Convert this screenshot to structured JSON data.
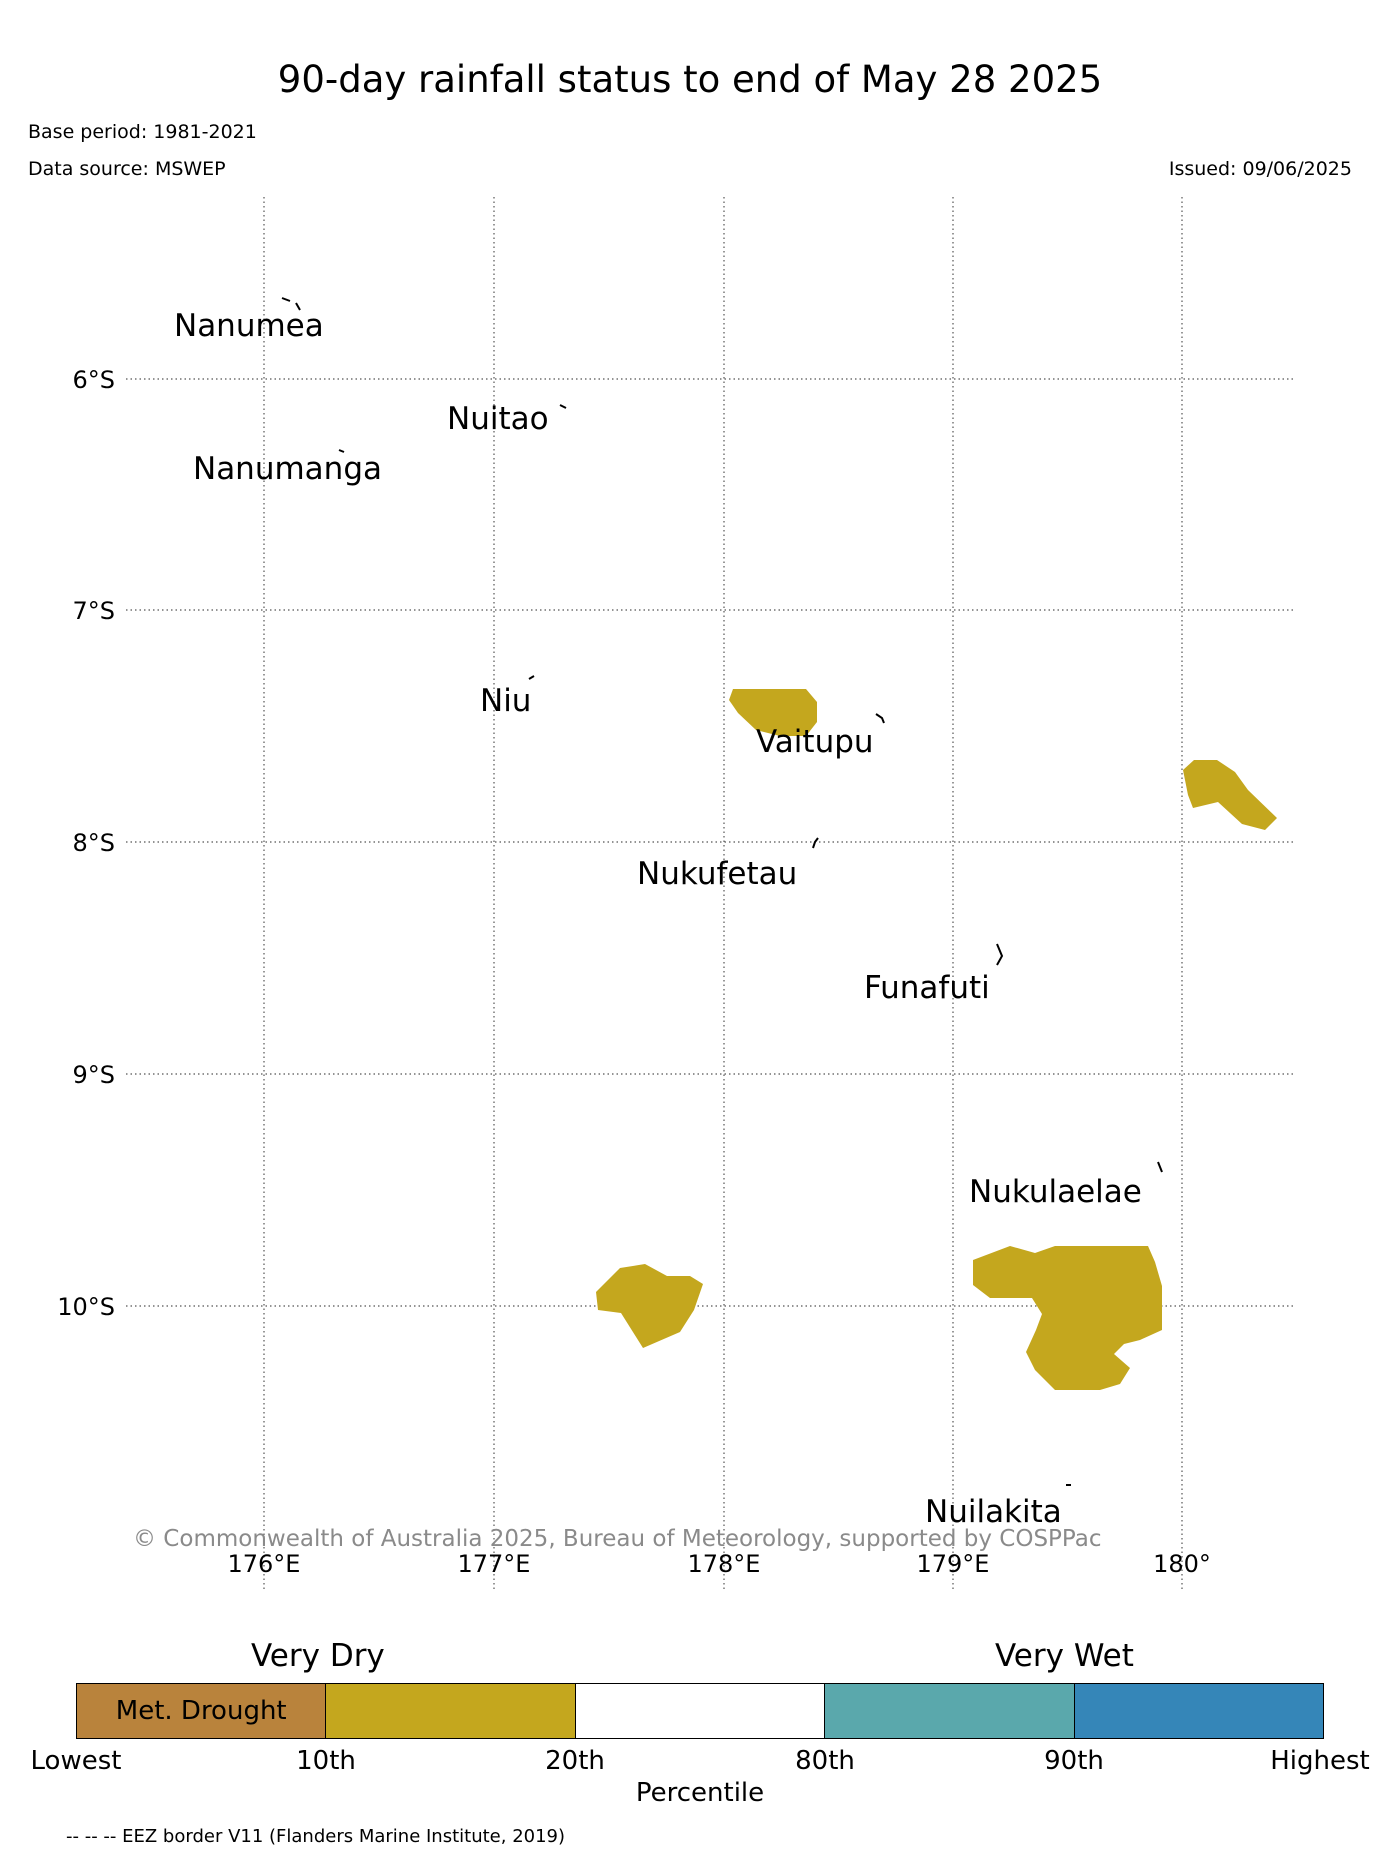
{
  "header": {
    "title": "90-day rainfall status to end of May 28 2025",
    "base_period": "Base period: 1981-2021",
    "data_source": "Data source: MSWEP",
    "issued": "Issued: 09/06/2025"
  },
  "map": {
    "latitude_labels": [
      "6°S",
      "7°S",
      "8°S",
      "9°S",
      "10°S"
    ],
    "longitude_labels": [
      "176°E",
      "177°E",
      "178°E",
      "179°E",
      "180°"
    ],
    "gridlines": "dotted",
    "islands": [
      {
        "name": "Nanumea"
      },
      {
        "name": "Nuitao"
      },
      {
        "name": "Nanumanga"
      },
      {
        "name": "Niu"
      },
      {
        "name": "Vaitupu"
      },
      {
        "name": "Nukufetau"
      },
      {
        "name": "Funafuti"
      },
      {
        "name": "Nukulaelae"
      },
      {
        "name": "Nuilakita"
      }
    ],
    "rainfall_areas": [
      {
        "category": "10th-20th percentile",
        "color": "#c4a71e"
      },
      {
        "category": "10th-20th percentile",
        "color": "#c4a71e"
      },
      {
        "category": "10th-20th percentile",
        "color": "#c4a71e"
      },
      {
        "category": "10th-20th percentile",
        "color": "#c4a71e"
      }
    ],
    "copyright": "© Commonwealth of Australia 2025, Bureau of Meteorology, supported by COSPPac"
  },
  "legend": {
    "left_caption": "Very Dry",
    "right_caption": "Very Wet",
    "segments": [
      {
        "label": "Met. Drought",
        "color": "#b9833c"
      },
      {
        "label": "",
        "color": "#c4a71e"
      },
      {
        "label": "",
        "color": "#ffffff"
      },
      {
        "label": "",
        "color": "#5aa8ac"
      },
      {
        "label": "",
        "color": "#3586b8"
      }
    ],
    "tick_labels": [
      "Lowest",
      "10th",
      "20th",
      "80th",
      "90th",
      "Highest"
    ],
    "axis_label": "Percentile"
  },
  "footer": {
    "eez_note": "-- -- -- EEZ border V11 (Flanders Marine Institute, 2019)"
  }
}
